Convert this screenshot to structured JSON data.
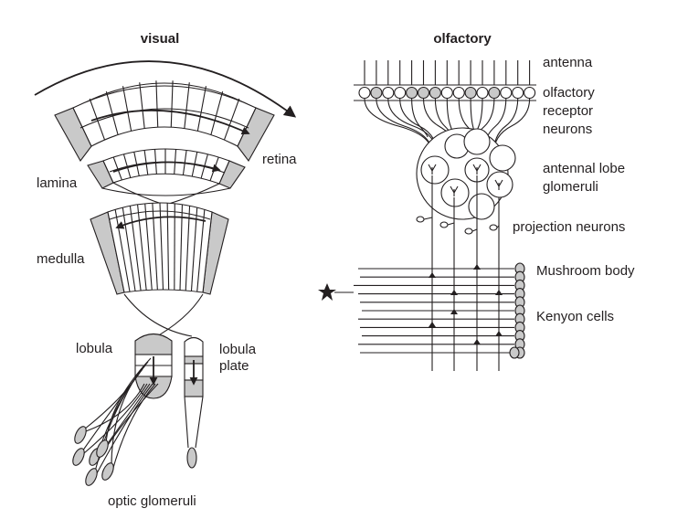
{
  "titles": {
    "visual": "visual",
    "olfactory": "olfactory"
  },
  "visual_labels": {
    "retina": "retina",
    "lamina": "lamina",
    "medulla": "medulla",
    "lobula": "lobula",
    "lobula_plate_line1": "lobula",
    "lobula_plate_line2": "plate",
    "optic_glomeruli": "optic glomeruli"
  },
  "olfactory_labels": {
    "antenna": "antenna",
    "orn_line1": "olfactory",
    "orn_line2": "receptor",
    "orn_line3": "neurons",
    "antennal_lobe_line1": "antennal lobe",
    "antennal_lobe_line2": "glomeruli",
    "projection_neurons": "projection neurons",
    "mushroom_body": "Mushroom body",
    "kenyon_cells": "Kenyon cells"
  },
  "colors": {
    "ink": "#231f20",
    "shade": "#c9c9c9"
  },
  "icons": {
    "star": "star-icon",
    "arrows": "arrowhead-icon"
  }
}
